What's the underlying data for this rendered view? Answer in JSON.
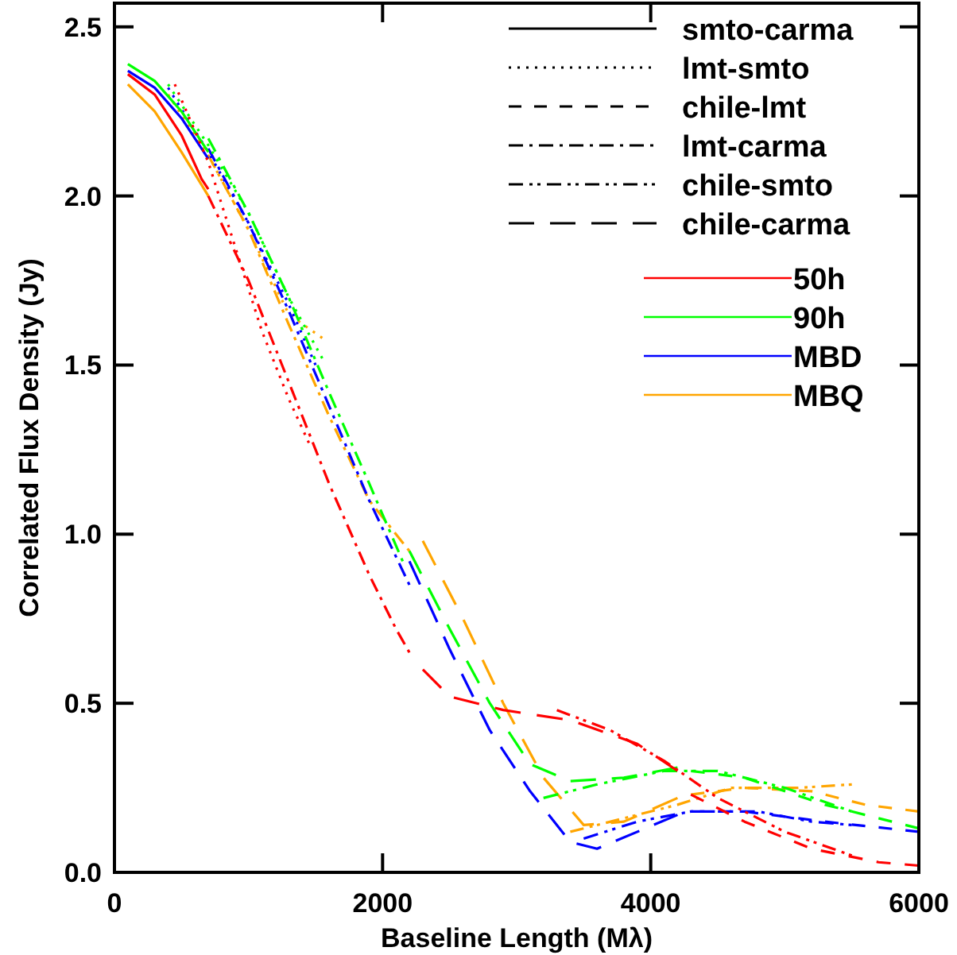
{
  "chart_data": {
    "type": "line",
    "xlabel": "Baseline Length (Mλ)",
    "ylabel": "Correlated Flux Density (Jy)",
    "xlim": [
      0,
      6000
    ],
    "ylim": [
      0,
      2.57
    ],
    "xticks": [
      0,
      2000,
      4000,
      6000
    ],
    "yticks": [
      {
        "value": 0,
        "label": "0.0"
      },
      {
        "value": 0.5,
        "label": "0.5"
      },
      {
        "value": 1,
        "label": "1.0"
      },
      {
        "value": 1.5,
        "label": "1.5"
      },
      {
        "value": 2,
        "label": "2.0"
      },
      {
        "value": 2.5,
        "label": "2.5"
      }
    ],
    "grid": false,
    "legend": "top right",
    "marker": "none",
    "series": [
      {
        "name": "smto-carma",
        "color": "#000000",
        "line_style": "solid"
      },
      {
        "name": "lmt-smto",
        "color": "#000000",
        "line_style": "dotted"
      },
      {
        "name": "chile-lmt",
        "color": "#000000",
        "line_style": "dashed"
      },
      {
        "name": "lmt-carma",
        "color": "#000000",
        "line_style": "dashdot"
      },
      {
        "name": "chile-smto",
        "color": "#000000",
        "line_style": "dashdotdot"
      },
      {
        "name": "chile-carma",
        "color": "#000000",
        "line_style": "longdash"
      },
      {
        "name": "50h",
        "color": "#ff0000",
        "line_style": "solid"
      },
      {
        "name": "90h",
        "color": "#00ff00",
        "line_style": "solid"
      },
      {
        "name": "MBD",
        "color": "#0000ff",
        "line_style": "solid"
      },
      {
        "name": "MBQ",
        "color": "#ffa500",
        "line_style": "solid"
      },
      {
        "color": "#ff0000",
        "line_style": "solid",
        "x": [
          100,
          300,
          500,
          650,
          700
        ],
        "values": [
          2.36,
          2.3,
          2.18,
          2.05,
          2.02
        ]
      },
      {
        "color": "#ff0000",
        "line_style": "dotted",
        "x": [
          450,
          700,
          900,
          1100,
          1300,
          1450
        ],
        "values": [
          2.33,
          2.1,
          1.85,
          1.6,
          1.4,
          1.27
        ]
      },
      {
        "color": "#ff0000",
        "line_style": "dashdot",
        "x": [
          700,
          1000,
          1300,
          1600,
          1900,
          2100,
          2200
        ],
        "values": [
          2.0,
          1.75,
          1.45,
          1.15,
          0.88,
          0.72,
          0.65
        ]
      },
      {
        "color": "#ff0000",
        "line_style": "longdash",
        "x": [
          2300,
          2500,
          2900,
          3400,
          3900,
          4200
        ],
        "values": [
          0.6,
          0.52,
          0.48,
          0.45,
          0.38,
          0.3
        ]
      },
      {
        "color": "#ff0000",
        "line_style": "dashdotdot",
        "x": [
          3300,
          3700,
          4100,
          4500,
          5000,
          5500
        ],
        "values": [
          0.48,
          0.42,
          0.33,
          0.22,
          0.12,
          0.05
        ]
      },
      {
        "color": "#ff0000",
        "line_style": "dashed",
        "x": [
          4300,
          4700,
          5200,
          5700,
          6000
        ],
        "values": [
          0.23,
          0.15,
          0.07,
          0.03,
          0.02
        ]
      },
      {
        "color": "#00ff00",
        "line_style": "solid",
        "x": [
          100,
          300,
          500,
          700
        ],
        "values": [
          2.39,
          2.34,
          2.25,
          2.13
        ]
      },
      {
        "color": "#00ff00",
        "line_style": "dotted",
        "x": [
          400,
          700,
          1000,
          1300,
          1550
        ],
        "values": [
          2.33,
          2.15,
          1.95,
          1.7,
          1.52
        ]
      },
      {
        "color": "#00ff00",
        "line_style": "dashdot",
        "x": [
          700,
          1000,
          1300,
          1600,
          1900,
          2150
        ],
        "values": [
          2.17,
          1.95,
          1.7,
          1.42,
          1.15,
          0.92
        ]
      },
      {
        "color": "#00ff00",
        "line_style": "longdash",
        "x": [
          2200,
          2500,
          2800,
          3100,
          3400,
          3800,
          4200
        ],
        "values": [
          0.95,
          0.72,
          0.5,
          0.32,
          0.27,
          0.28,
          0.31
        ]
      },
      {
        "color": "#00ff00",
        "line_style": "dashdotdot",
        "x": [
          3200,
          3600,
          4100,
          4500,
          5000,
          5500
        ],
        "values": [
          0.22,
          0.26,
          0.3,
          0.3,
          0.25,
          0.18
        ]
      },
      {
        "color": "#00ff00",
        "line_style": "dashed",
        "x": [
          4300,
          4700,
          5300,
          6000
        ],
        "values": [
          0.3,
          0.28,
          0.2,
          0.13
        ]
      },
      {
        "color": "#0000ff",
        "line_style": "solid",
        "x": [
          100,
          300,
          500,
          700
        ],
        "values": [
          2.37,
          2.32,
          2.23,
          2.11
        ]
      },
      {
        "color": "#0000ff",
        "line_style": "dotted",
        "x": [
          400,
          700,
          1000,
          1300,
          1500
        ],
        "values": [
          2.32,
          2.13,
          1.92,
          1.68,
          1.5
        ]
      },
      {
        "color": "#0000ff",
        "line_style": "dashdot",
        "x": [
          700,
          1000,
          1300,
          1600,
          1900,
          2200
        ],
        "values": [
          2.14,
          1.92,
          1.66,
          1.38,
          1.1,
          0.85
        ]
      },
      {
        "color": "#0000ff",
        "line_style": "longdash",
        "x": [
          2200,
          2500,
          2800,
          3100,
          3400,
          3600,
          4200
        ],
        "values": [
          0.92,
          0.66,
          0.42,
          0.24,
          0.09,
          0.07,
          0.17
        ]
      },
      {
        "color": "#0000ff",
        "line_style": "dashdotdot",
        "x": [
          3500,
          3900,
          4300,
          4800,
          5200,
          5500
        ],
        "values": [
          0.1,
          0.15,
          0.18,
          0.18,
          0.15,
          0.14
        ]
      },
      {
        "color": "#0000ff",
        "line_style": "dashed",
        "x": [
          4300,
          4700,
          5300,
          6000
        ],
        "values": [
          0.18,
          0.18,
          0.15,
          0.12
        ]
      },
      {
        "color": "#ffa500",
        "line_style": "solid",
        "x": [
          100,
          300,
          500,
          700
        ],
        "values": [
          2.33,
          2.25,
          2.13,
          2.0
        ]
      },
      {
        "color": "#ffa500",
        "line_style": "dotted",
        "x": [
          400,
          700,
          1000,
          1300,
          1550
        ],
        "values": [
          2.3,
          2.12,
          1.9,
          1.65,
          1.58
        ]
      },
      {
        "color": "#ffa500",
        "line_style": "dashdot",
        "x": [
          700,
          1000,
          1300,
          1600,
          1900,
          2200
        ],
        "values": [
          2.12,
          1.9,
          1.62,
          1.35,
          1.1,
          0.95
        ]
      },
      {
        "color": "#ffa500",
        "line_style": "longdash",
        "x": [
          2300,
          2600,
          2900,
          3200,
          3500,
          3800,
          4200
        ],
        "values": [
          0.98,
          0.75,
          0.5,
          0.28,
          0.14,
          0.15,
          0.22
        ]
      },
      {
        "color": "#ffa500",
        "line_style": "dashdotdot",
        "x": [
          3400,
          3800,
          4200,
          4600,
          5100,
          5500
        ],
        "values": [
          0.12,
          0.16,
          0.2,
          0.25,
          0.25,
          0.26
        ]
      },
      {
        "color": "#ffa500",
        "line_style": "dashed",
        "x": [
          4300,
          4700,
          5200,
          5600,
          6000
        ],
        "values": [
          0.23,
          0.25,
          0.24,
          0.2,
          0.18
        ]
      }
    ]
  }
}
